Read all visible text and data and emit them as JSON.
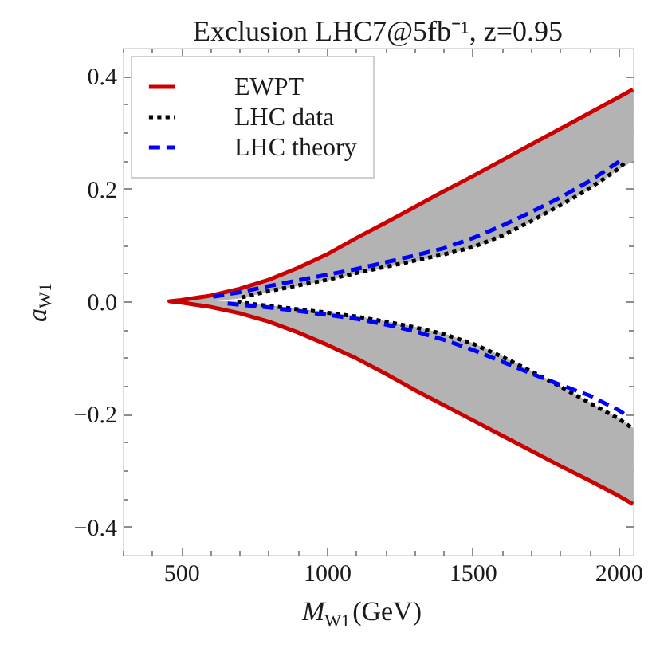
{
  "chart_data": {
    "type": "line",
    "title": "Exclusion LHC7@5fb⁻¹, z=0.95",
    "xlabel": "M$_{W1}$(GeV)",
    "ylabel": "a$_{W1}$",
    "xlim": [
      300,
      2050
    ],
    "ylim": [
      -0.45,
      0.45
    ],
    "xticks": [
      {
        "value": 300,
        "label": null
      },
      {
        "value": 400,
        "label": null
      },
      500,
      {
        "value": 600,
        "label": null
      },
      {
        "value": 700,
        "label": null
      },
      {
        "value": 800,
        "label": null
      },
      {
        "value": 900,
        "label": null
      },
      1000,
      {
        "value": 1100,
        "label": null
      },
      {
        "value": 1200,
        "label": null
      },
      {
        "value": 1300,
        "label": null
      },
      {
        "value": 1400,
        "label": null
      },
      1500,
      {
        "value": 1600,
        "label": null
      },
      {
        "value": 1700,
        "label": null
      },
      {
        "value": 1800,
        "label": null
      },
      {
        "value": 1900,
        "label": null
      },
      2000
    ],
    "yticks": [
      -0.4,
      {
        "value": -0.35,
        "label": null
      },
      {
        "value": -0.3,
        "label": null
      },
      {
        "value": -0.25,
        "label": null
      },
      -0.2,
      {
        "value": -0.15,
        "label": null
      },
      {
        "value": -0.1,
        "label": null
      },
      {
        "value": -0.05,
        "label": null
      },
      {
        "value": 0,
        "label": "0.0"
      },
      {
        "value": 0.05,
        "label": null
      },
      {
        "value": 0.1,
        "label": null
      },
      {
        "value": 0.15,
        "label": null
      },
      0.2,
      {
        "value": 0.25,
        "label": null
      },
      {
        "value": 0.3,
        "label": null
      },
      {
        "value": 0.35,
        "label": null
      },
      0.4
    ],
    "legend": "top left",
    "series": [
      {
        "name": "EWPT",
        "color": "#cc0000",
        "line_style": "solid",
        "x": [
          2050,
          2000,
          1900,
          1800,
          1700,
          1600,
          1500,
          1400,
          1300,
          1200,
          1100,
          1000,
          900,
          800,
          700,
          600,
          500,
          460,
          500,
          600,
          700,
          800,
          900,
          1000,
          1100,
          1200,
          1300,
          1400,
          1500,
          1600,
          1700,
          1800,
          1900,
          2000,
          2050
        ],
        "values": [
          0.376,
          0.362,
          0.334,
          0.306,
          0.278,
          0.25,
          0.222,
          0.195,
          0.167,
          0.139,
          0.112,
          0.083,
          0.059,
          0.038,
          0.022,
          0.01,
          0.002,
          0,
          -0.002,
          -0.01,
          -0.021,
          -0.036,
          -0.055,
          -0.077,
          -0.101,
          -0.128,
          -0.157,
          -0.184,
          -0.211,
          -0.238,
          -0.265,
          -0.292,
          -0.318,
          -0.345,
          -0.36
        ],
        "lower": [
          0.25,
          0.235,
          0.2,
          0.17,
          0.142,
          0.116,
          0.096,
          0.083,
          0.072,
          0.061,
          0.05,
          0.038,
          0.028,
          0.018,
          0.006,
          0,
          0,
          0,
          -0.002,
          -0.01,
          -0.021,
          -0.036,
          -0.055,
          -0.077,
          -0.101,
          -0.128,
          -0.157,
          -0.184,
          -0.211,
          -0.238,
          -0.265,
          -0.292,
          -0.318,
          -0.345,
          -0.36
        ],
        "upper": [
          0.376,
          0.362,
          0.334,
          0.306,
          0.278,
          0.25,
          0.222,
          0.195,
          0.167,
          0.139,
          0.112,
          0.083,
          0.059,
          0.038,
          0.022,
          0.01,
          0.002,
          0,
          0,
          0,
          -0.002,
          -0.008,
          -0.014,
          -0.02,
          -0.027,
          -0.036,
          -0.046,
          -0.058,
          -0.075,
          -0.098,
          -0.124,
          -0.151,
          -0.18,
          -0.208,
          -0.226
        ]
      },
      {
        "name": "LHC data",
        "color": "#000000",
        "line_style": "dotted",
        "x": [
          2020,
          2000,
          1900,
          1800,
          1700,
          1600,
          1500,
          1400,
          1300,
          1200,
          1100,
          1000,
          900,
          800,
          700,
          700,
          800,
          900,
          1000,
          1100,
          1200,
          1300,
          1400,
          1500,
          1600,
          1700,
          1800,
          1900,
          2000,
          2050
        ],
        "values": [
          0.245,
          0.235,
          0.2,
          0.17,
          0.142,
          0.116,
          0.096,
          0.083,
          0.072,
          0.061,
          0.05,
          0.038,
          0.028,
          0.018,
          0.006,
          -0.002,
          -0.008,
          -0.014,
          -0.02,
          -0.027,
          -0.036,
          -0.046,
          -0.058,
          -0.075,
          -0.098,
          -0.124,
          -0.151,
          -0.18,
          -0.208,
          -0.226
        ]
      },
      {
        "name": "LHC theory",
        "color": "#0000ff",
        "line_style": "dashed",
        "x": [
          610,
          700,
          800,
          900,
          1000,
          1100,
          1200,
          1300,
          1400,
          1500,
          1600,
          1700,
          1800,
          1900,
          2000,
          2010,
          null,
          660,
          700,
          800,
          900,
          1000,
          1100,
          1200,
          1300,
          1400,
          1500,
          1600,
          1700,
          1800,
          1900,
          2000,
          2020
        ],
        "values": [
          0.008,
          0.016,
          0.027,
          0.037,
          0.047,
          0.057,
          0.069,
          0.081,
          0.094,
          0.112,
          0.134,
          0.158,
          0.184,
          0.213,
          0.247,
          0.252,
          null,
          -0.004,
          -0.006,
          -0.011,
          -0.017,
          -0.024,
          -0.031,
          -0.041,
          -0.053,
          -0.068,
          -0.086,
          -0.107,
          -0.128,
          -0.148,
          -0.167,
          -0.193,
          -0.2
        ]
      }
    ]
  }
}
